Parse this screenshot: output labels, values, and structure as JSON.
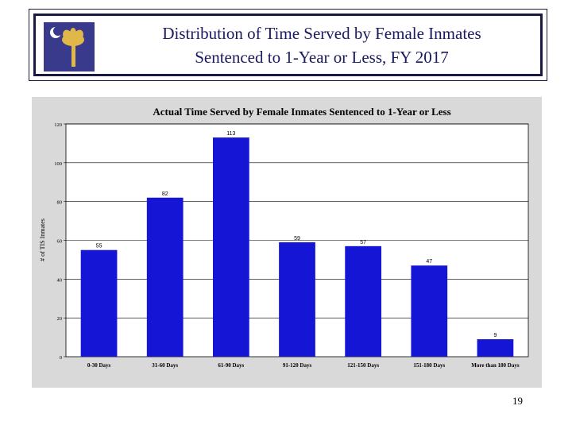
{
  "slide": {
    "title_line1": "Distribution of Time Served by Female Inmates",
    "title_line2": "Sentenced to 1-Year or Less, FY 2017",
    "page_number": "19",
    "logo_icon": "palmetto-crescent-icon"
  },
  "colors": {
    "bar": "#1515d6",
    "title": "#1a1a60",
    "logo_bg": "#3a3a8c",
    "logo_tree": "#e0b84a",
    "panel": "#d9d9d9"
  },
  "chart_data": {
    "type": "bar",
    "title": "Actual Time Served by Female Inmates Sentenced to 1-Year or Less",
    "xlabel": "",
    "ylabel": "# of TIS Inmates",
    "categories": [
      "0-30 Days",
      "31-60 Days",
      "61-90 Days",
      "91-120 Days",
      "121-150 Days",
      "151-180 Days",
      "More than 180 Days"
    ],
    "values": [
      55,
      82,
      113,
      59,
      57,
      47,
      9
    ],
    "ylim": [
      0,
      120
    ],
    "yticks": [
      0,
      20,
      40,
      60,
      80,
      100,
      120
    ],
    "grid": true,
    "legend": "none"
  }
}
